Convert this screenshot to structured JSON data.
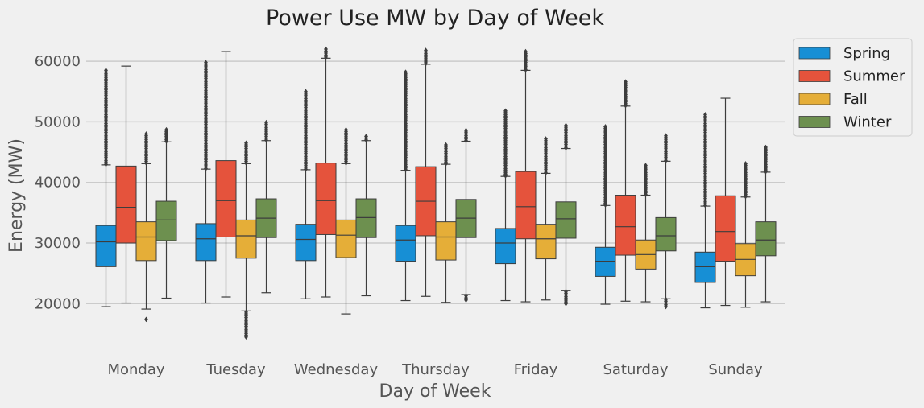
{
  "chart_data": {
    "type": "boxplot",
    "title": "Power Use MW by Day of Week",
    "xlabel": "Day of Week",
    "ylabel": "Energy (MW)",
    "ylim": [
      13000,
      64000
    ],
    "yticks": [
      20000,
      30000,
      40000,
      50000,
      60000
    ],
    "grid": true,
    "legend_position": "outside-top-right",
    "categories": [
      "Monday",
      "Tuesday",
      "Wednesday",
      "Thursday",
      "Friday",
      "Saturday",
      "Sunday"
    ],
    "series": [
      {
        "name": "Spring",
        "color": "#178fd5",
        "boxes": [
          {
            "whislo": 19500,
            "q1": 26100,
            "med": 30200,
            "q3": 32900,
            "whishi": 42900,
            "fliers_range": [
              43000,
              58500
            ]
          },
          {
            "whislo": 20100,
            "q1": 27100,
            "med": 30700,
            "q3": 33200,
            "whishi": 42200,
            "fliers_range": [
              42300,
              59800
            ]
          },
          {
            "whislo": 20800,
            "q1": 27100,
            "med": 30600,
            "q3": 33100,
            "whishi": 42100,
            "fliers_range": [
              42200,
              55000
            ]
          },
          {
            "whislo": 20500,
            "q1": 27000,
            "med": 30500,
            "q3": 32900,
            "whishi": 42000,
            "fliers_range": [
              42100,
              58200
            ]
          },
          {
            "whislo": 20500,
            "q1": 26600,
            "med": 30000,
            "q3": 32400,
            "whishi": 41000,
            "fliers_range": [
              41100,
              51800
            ]
          },
          {
            "whislo": 19900,
            "q1": 24500,
            "med": 27000,
            "q3": 29300,
            "whishi": 36200,
            "fliers_range": [
              36300,
              49200
            ]
          },
          {
            "whislo": 19300,
            "q1": 23500,
            "med": 26100,
            "q3": 28500,
            "whishi": 36100,
            "fliers_range": [
              36200,
              51200
            ]
          }
        ]
      },
      {
        "name": "Summer",
        "color": "#e5533c",
        "boxes": [
          {
            "whislo": 20100,
            "q1": 30000,
            "med": 35900,
            "q3": 42700,
            "whishi": 59200,
            "fliers_range": []
          },
          {
            "whislo": 21100,
            "q1": 31000,
            "med": 37000,
            "q3": 43600,
            "whishi": 61600,
            "fliers_range": []
          },
          {
            "whislo": 21100,
            "q1": 31400,
            "med": 37000,
            "q3": 43200,
            "whishi": 60500,
            "fliers_range": [
              60700,
              62000
            ]
          },
          {
            "whislo": 21200,
            "q1": 31200,
            "med": 36900,
            "q3": 42600,
            "whishi": 59500,
            "fliers_range": [
              59600,
              61800
            ]
          },
          {
            "whislo": 20300,
            "q1": 30700,
            "med": 36000,
            "q3": 41800,
            "whishi": 58500,
            "fliers_range": [
              58600,
              61600
            ]
          },
          {
            "whislo": 20400,
            "q1": 28000,
            "med": 32700,
            "q3": 37900,
            "whishi": 52600,
            "fliers_range": [
              52700,
              56600
            ]
          },
          {
            "whislo": 19700,
            "q1": 27000,
            "med": 31900,
            "q3": 37800,
            "whishi": 53900,
            "fliers_range": []
          }
        ]
      },
      {
        "name": "Fall",
        "color": "#e5ae38",
        "boxes": [
          {
            "whislo": 19100,
            "q1": 27100,
            "med": 31000,
            "q3": 33500,
            "whishi": 43100,
            "fliers_range": [
              43200,
              48000
            ],
            "low_fliers": [
              17400
            ]
          },
          {
            "whislo": 18800,
            "q1": 27500,
            "med": 31200,
            "q3": 33800,
            "whishi": 43100,
            "fliers_range": [
              43200,
              46500
            ],
            "low_fliers_range": [
              14500,
              18600
            ]
          },
          {
            "whislo": 18300,
            "q1": 27600,
            "med": 31300,
            "q3": 33800,
            "whishi": 43100,
            "fliers_range": [
              43200,
              48700
            ]
          },
          {
            "whislo": 20200,
            "q1": 27200,
            "med": 31000,
            "q3": 33500,
            "whishi": 43000,
            "fliers_range": [
              43100,
              46200
            ]
          },
          {
            "whislo": 20600,
            "q1": 27400,
            "med": 30700,
            "q3": 33100,
            "whishi": 41500,
            "fliers_range": [
              41600,
              47200
            ]
          },
          {
            "whislo": 20300,
            "q1": 25700,
            "med": 28100,
            "q3": 30500,
            "whishi": 37900,
            "fliers_range": [
              38000,
              42800
            ]
          },
          {
            "whislo": 19400,
            "q1": 24600,
            "med": 27300,
            "q3": 29900,
            "whishi": 37600,
            "fliers_range": [
              37700,
              43100
            ]
          }
        ]
      },
      {
        "name": "Winter",
        "color": "#6d904f",
        "boxes": [
          {
            "whislo": 20900,
            "q1": 30400,
            "med": 33800,
            "q3": 36900,
            "whishi": 46700,
            "fliers_range": [
              46800,
              48700
            ]
          },
          {
            "whislo": 21800,
            "q1": 30900,
            "med": 34100,
            "q3": 37300,
            "whishi": 46900,
            "fliers_range": [
              47000,
              49900
            ]
          },
          {
            "whislo": 21300,
            "q1": 30900,
            "med": 34200,
            "q3": 37300,
            "whishi": 46900,
            "fliers_range": [
              47000,
              47600
            ]
          },
          {
            "whislo": 21500,
            "q1": 30900,
            "med": 34100,
            "q3": 37200,
            "whishi": 46800,
            "fliers_range": [
              46900,
              48600
            ],
            "low_fliers_range": [
              20600,
              21300
            ]
          },
          {
            "whislo": 22200,
            "q1": 30800,
            "med": 34000,
            "q3": 36800,
            "whishi": 45600,
            "fliers_range": [
              45700,
              49400
            ],
            "low_fliers_range": [
              20000,
              22000
            ]
          },
          {
            "whislo": 20800,
            "q1": 28700,
            "med": 31200,
            "q3": 34200,
            "whishi": 43500,
            "fliers_range": [
              43600,
              47700
            ],
            "low_fliers_range": [
              19500,
              20700
            ]
          },
          {
            "whislo": 20300,
            "q1": 27900,
            "med": 30500,
            "q3": 33500,
            "whishi": 41700,
            "fliers_range": [
              41800,
              45800
            ]
          }
        ]
      }
    ]
  }
}
